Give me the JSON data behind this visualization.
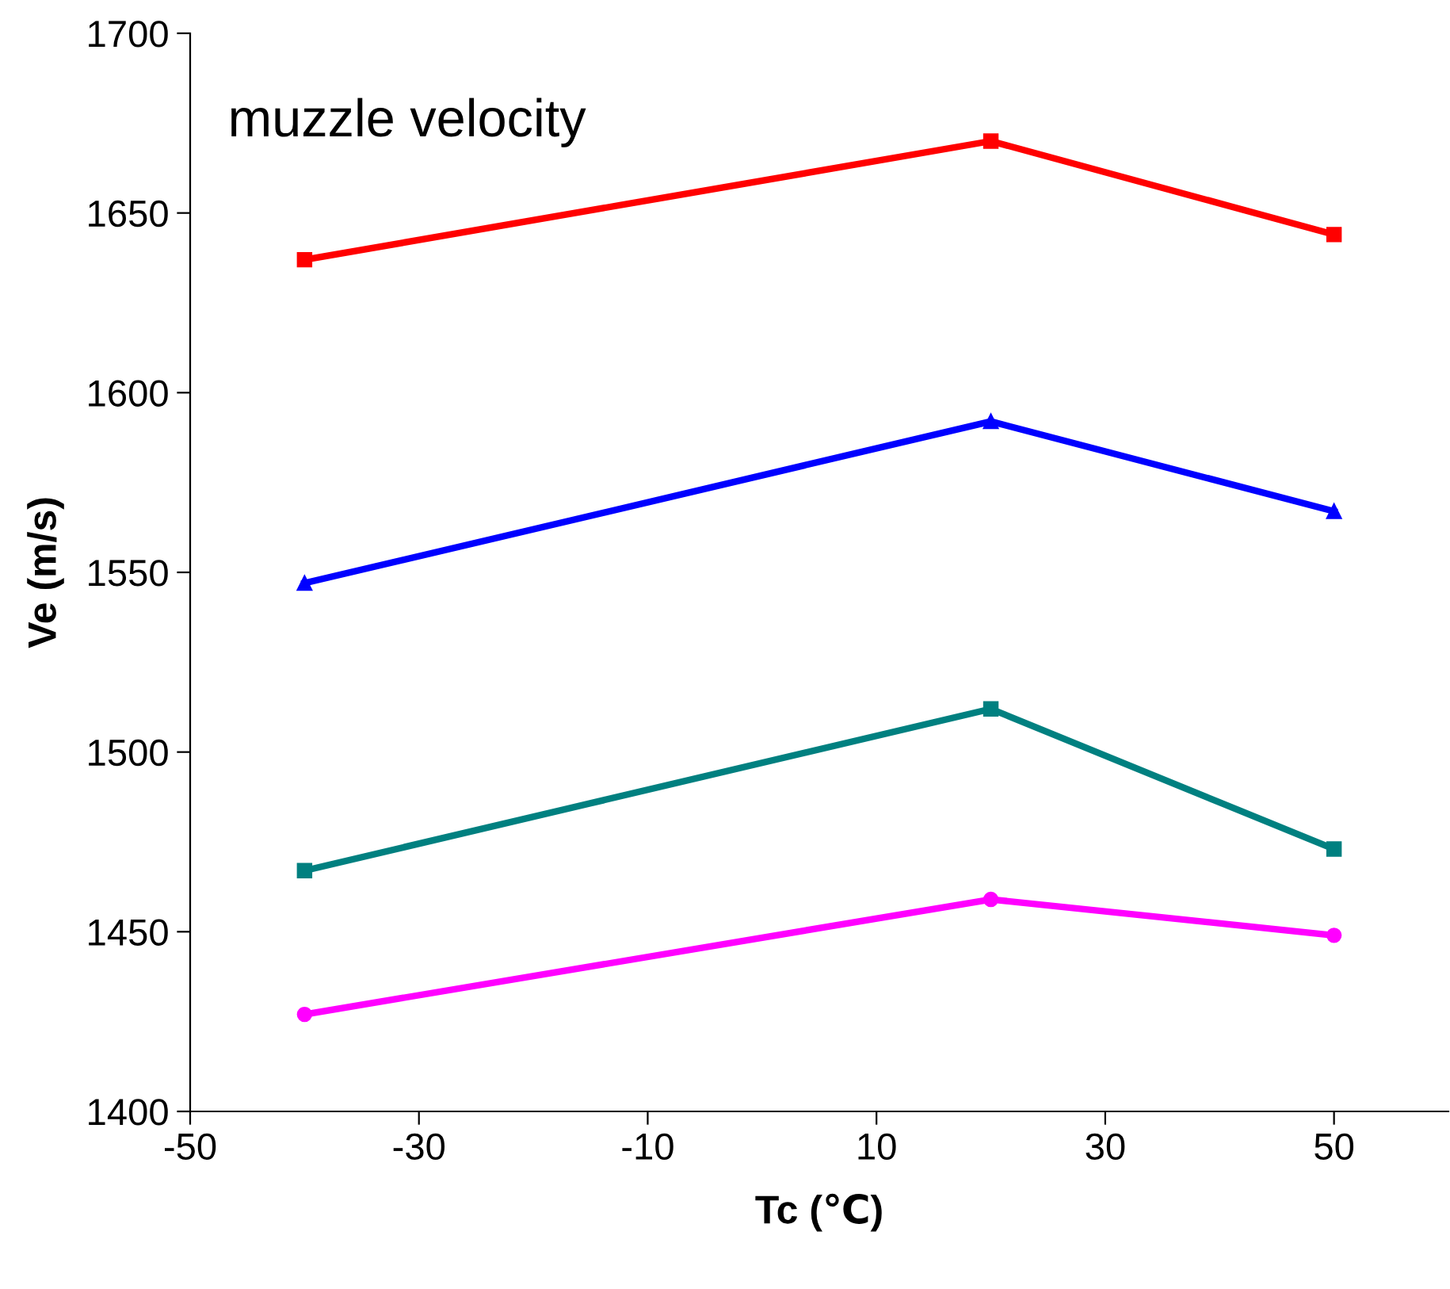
{
  "chart_data": {
    "type": "line",
    "title": "muzzle velocity",
    "xlabel": "Tc (℃)",
    "ylabel": "Ve (m/s)",
    "x": [
      -40,
      20,
      50
    ],
    "series": [
      {
        "color": "#ff0000",
        "marker": "square",
        "values": [
          1637,
          1670,
          1644
        ]
      },
      {
        "color": "#0000ff",
        "marker": "triangle",
        "values": [
          1547,
          1592,
          1567
        ]
      },
      {
        "color": "#008080",
        "marker": "square",
        "values": [
          1467,
          1512,
          1473
        ]
      },
      {
        "color": "#ff00ff",
        "marker": "circle",
        "values": [
          1427,
          1459,
          1449
        ]
      }
    ],
    "xlim": [
      -50,
      60
    ],
    "xticks": [
      -50,
      -30,
      -10,
      10,
      30,
      50
    ],
    "ylim": [
      1400,
      1700
    ],
    "yticks": [
      1400,
      1450,
      1500,
      1550,
      1600,
      1650,
      1700
    ],
    "grid": false,
    "line_style": "solid"
  }
}
